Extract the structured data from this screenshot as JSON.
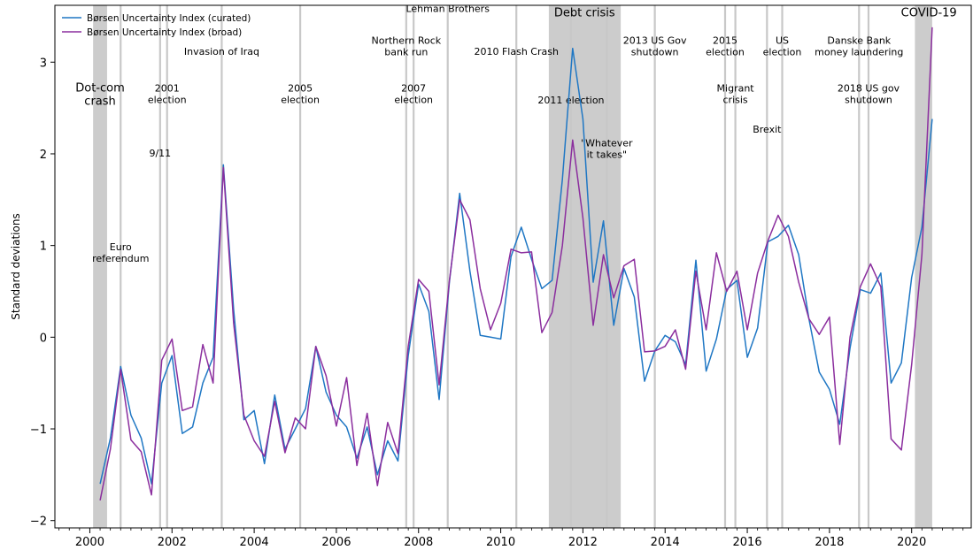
{
  "chart_data": {
    "type": "line",
    "ylabel": "Standard deviations",
    "xlim": [
      1999.15,
      2021.45
    ],
    "ylim": [
      -2.08,
      3.62
    ],
    "x_ticks": [
      2000,
      2002,
      2004,
      2006,
      2008,
      2010,
      2012,
      2014,
      2016,
      2018,
      2020
    ],
    "y_ticks": [
      -2,
      -1,
      0,
      1,
      2,
      3
    ],
    "y_tick_labels": [
      "−2",
      "−1",
      "0",
      "1",
      "2",
      "3"
    ],
    "grid": false,
    "legend_position": "top-left",
    "colors": {
      "curated": "#1f77c4",
      "broad": "#8b2e9e",
      "shade": "#cccccc",
      "vline": "#c8c8c8"
    },
    "series": [
      {
        "name": "Børsen Uncertainty Index (curated)",
        "key": "curated",
        "x": [
          2000.25,
          2000.5,
          2000.75,
          2001.0,
          2001.25,
          2001.5,
          2001.75,
          2002.0,
          2002.25,
          2002.5,
          2002.75,
          2003.0,
          2003.25,
          2003.5,
          2003.75,
          2004.0,
          2004.25,
          2004.5,
          2004.75,
          2005.0,
          2005.25,
          2005.5,
          2005.75,
          2006.0,
          2006.25,
          2006.5,
          2006.75,
          2007.0,
          2007.25,
          2007.5,
          2007.75,
          2008.0,
          2008.25,
          2008.5,
          2008.75,
          2009.0,
          2009.25,
          2009.5,
          2009.75,
          2010.0,
          2010.25,
          2010.5,
          2010.75,
          2011.0,
          2011.25,
          2011.5,
          2011.75,
          2012.0,
          2012.25,
          2012.5,
          2012.75,
          2013.0,
          2013.25,
          2013.5,
          2013.75,
          2014.0,
          2014.25,
          2014.5,
          2014.75,
          2015.0,
          2015.25,
          2015.5,
          2015.75,
          2016.0,
          2016.25,
          2016.5,
          2016.75,
          2017.0,
          2017.25,
          2017.5,
          2017.75,
          2018.0,
          2018.25,
          2018.5,
          2018.75,
          2019.0,
          2019.25,
          2019.5,
          2019.75,
          2020.0,
          2020.25,
          2020.5
        ],
        "values": [
          -1.6,
          -1.1,
          -0.32,
          -0.85,
          -1.1,
          -1.6,
          -0.5,
          -0.2,
          -1.05,
          -0.98,
          -0.5,
          -0.22,
          1.88,
          0.3,
          -0.9,
          -0.8,
          -1.38,
          -0.63,
          -1.22,
          -1.0,
          -0.78,
          -0.1,
          -0.6,
          -0.85,
          -0.98,
          -1.32,
          -0.98,
          -1.5,
          -1.13,
          -1.35,
          -0.2,
          0.58,
          0.28,
          -0.68,
          0.6,
          1.57,
          0.72,
          0.02,
          0.0,
          -0.02,
          0.88,
          1.2,
          0.85,
          0.53,
          0.62,
          1.72,
          3.15,
          2.38,
          0.6,
          1.27,
          0.13,
          0.75,
          0.44,
          -0.48,
          -0.15,
          0.02,
          -0.05,
          -0.3,
          0.84,
          -0.37,
          -0.02,
          0.52,
          0.62,
          -0.22,
          0.1,
          1.04,
          1.1,
          1.22,
          0.9,
          0.2,
          -0.38,
          -0.57,
          -0.95,
          -0.12,
          0.52,
          0.48,
          0.7,
          -0.5,
          -0.28,
          0.65,
          1.2,
          2.38
        ]
      },
      {
        "name": "Børsen Uncertainty Index (broad)",
        "key": "broad",
        "x": [
          2000.25,
          2000.5,
          2000.75,
          2001.0,
          2001.25,
          2001.5,
          2001.75,
          2002.0,
          2002.25,
          2002.5,
          2002.75,
          2003.0,
          2003.25,
          2003.5,
          2003.75,
          2004.0,
          2004.25,
          2004.5,
          2004.75,
          2005.0,
          2005.25,
          2005.5,
          2005.75,
          2006.0,
          2006.25,
          2006.5,
          2006.75,
          2007.0,
          2007.25,
          2007.5,
          2007.75,
          2008.0,
          2008.25,
          2008.5,
          2008.75,
          2009.0,
          2009.25,
          2009.5,
          2009.75,
          2010.0,
          2010.25,
          2010.5,
          2010.75,
          2011.0,
          2011.25,
          2011.5,
          2011.75,
          2012.0,
          2012.25,
          2012.5,
          2012.75,
          2013.0,
          2013.25,
          2013.5,
          2013.75,
          2014.0,
          2014.25,
          2014.5,
          2014.75,
          2015.0,
          2015.25,
          2015.5,
          2015.75,
          2016.0,
          2016.25,
          2016.5,
          2016.75,
          2017.0,
          2017.25,
          2017.5,
          2017.75,
          2018.0,
          2018.25,
          2018.5,
          2018.75,
          2019.0,
          2019.25,
          2019.5,
          2019.75,
          2020.0,
          2020.25,
          2020.5
        ],
        "values": [
          -1.78,
          -1.22,
          -0.35,
          -1.12,
          -1.25,
          -1.72,
          -0.25,
          -0.02,
          -0.8,
          -0.76,
          -0.08,
          -0.5,
          1.85,
          0.15,
          -0.85,
          -1.13,
          -1.3,
          -0.7,
          -1.26,
          -0.88,
          -1.0,
          -0.1,
          -0.42,
          -0.97,
          -0.44,
          -1.4,
          -0.83,
          -1.62,
          -0.93,
          -1.27,
          -0.1,
          0.63,
          0.5,
          -0.52,
          0.62,
          1.5,
          1.28,
          0.53,
          0.08,
          0.37,
          0.96,
          0.92,
          0.93,
          0.05,
          0.27,
          1.0,
          2.15,
          1.3,
          0.13,
          0.9,
          0.43,
          0.78,
          0.85,
          -0.16,
          -0.15,
          -0.1,
          0.08,
          -0.35,
          0.72,
          0.08,
          0.92,
          0.5,
          0.72,
          0.08,
          0.7,
          1.05,
          1.33,
          1.1,
          0.6,
          0.2,
          0.03,
          0.22,
          -1.17,
          0.0,
          0.55,
          0.8,
          0.55,
          -1.11,
          -1.23,
          -0.3,
          0.9,
          3.38
        ]
      }
    ],
    "shaded_periods": [
      {
        "x0": 2000.08,
        "x1": 2000.42
      },
      {
        "x0": 2011.17,
        "x1": 2012.92
      },
      {
        "x0": 2020.08,
        "x1": 2020.5
      }
    ],
    "event_lines": [
      2000.75,
      2001.71,
      2001.88,
      2003.21,
      2005.12,
      2007.7,
      2007.88,
      2008.71,
      2010.38,
      2011.71,
      2012.58,
      2013.75,
      2015.46,
      2015.71,
      2016.48,
      2016.85,
      2018.72,
      2018.95
    ],
    "annotations": [
      {
        "lines": [
          "Dot-com",
          "crash"
        ],
        "x": 2000.25,
        "y": 2.68,
        "size": "big"
      },
      {
        "lines": [
          "Euro",
          "referendum"
        ],
        "x": 2000.75,
        "y": 0.95,
        "size": "small"
      },
      {
        "lines": [
          "2001",
          "election"
        ],
        "x": 2001.88,
        "y": 2.68,
        "size": "small"
      },
      {
        "lines": [
          "9/11"
        ],
        "x": 2001.71,
        "y": 1.97,
        "size": "small"
      },
      {
        "lines": [
          "Invasion of Iraq"
        ],
        "x": 2003.21,
        "y": 3.08,
        "size": "small"
      },
      {
        "lines": [
          "2005",
          "election"
        ],
        "x": 2005.12,
        "y": 2.68,
        "size": "small"
      },
      {
        "lines": [
          "2007",
          "election"
        ],
        "x": 2007.88,
        "y": 2.68,
        "size": "small"
      },
      {
        "lines": [
          "Northern Rock",
          "bank run"
        ],
        "x": 2007.7,
        "y": 3.2,
        "size": "small"
      },
      {
        "lines": [
          "Lehman Brothers"
        ],
        "x": 2008.71,
        "y": 3.55,
        "size": "small"
      },
      {
        "lines": [
          "2010 Flash Crash"
        ],
        "x": 2010.38,
        "y": 3.08,
        "size": "small"
      },
      {
        "lines": [
          "Debt crisis"
        ],
        "x": 2012.04,
        "y": 3.5,
        "size": "big"
      },
      {
        "lines": [
          "2011 election"
        ],
        "x": 2011.71,
        "y": 2.55,
        "size": "small"
      },
      {
        "lines": [
          "\"Whatever",
          "it takes\""
        ],
        "x": 2012.58,
        "y": 2.08,
        "size": "small"
      },
      {
        "lines": [
          "2013 US Gov",
          "shutdown"
        ],
        "x": 2013.75,
        "y": 3.2,
        "size": "small"
      },
      {
        "lines": [
          "2015",
          "election"
        ],
        "x": 2015.46,
        "y": 3.2,
        "size": "small"
      },
      {
        "lines": [
          "Migrant",
          "crisis"
        ],
        "x": 2015.71,
        "y": 2.68,
        "size": "small"
      },
      {
        "lines": [
          "Brexit"
        ],
        "x": 2016.48,
        "y": 2.23,
        "size": "small"
      },
      {
        "lines": [
          "US",
          "election"
        ],
        "x": 2016.85,
        "y": 3.2,
        "size": "small"
      },
      {
        "lines": [
          "Danske Bank",
          "money laundering"
        ],
        "x": 2018.72,
        "y": 3.2,
        "size": "small"
      },
      {
        "lines": [
          "2018 US gov",
          "shutdown"
        ],
        "x": 2018.95,
        "y": 2.68,
        "size": "small"
      },
      {
        "lines": [
          "COVID-19"
        ],
        "x": 2020.42,
        "y": 3.5,
        "size": "big"
      }
    ]
  }
}
